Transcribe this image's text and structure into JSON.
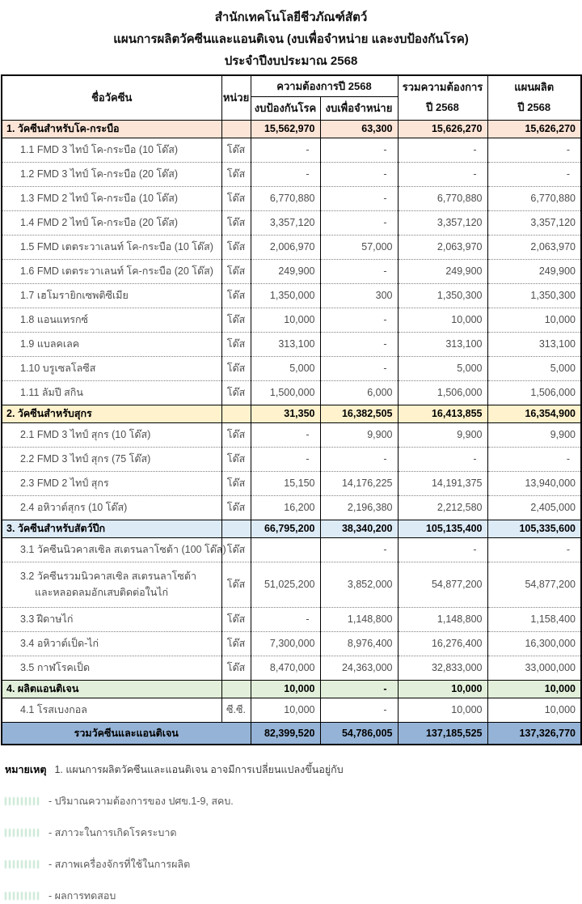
{
  "title": {
    "line1": "สำนักเทคโนโลยีชีวภัณฑ์สัตว์",
    "line2": "แผนการผลิตวัคซีนและแอนติเจน (งบเพื่อจำหน่าย และงบป้องกันโรค)",
    "line3": "ประจำปีงบประมาณ 2568"
  },
  "table": {
    "headers": {
      "name": "ชื่อวัคซีน",
      "unit": "หน่วย",
      "demand_group": "ความต้องการปี 2568",
      "demand_prevention": "งบป้องกันโรค",
      "demand_sale": "งบเพื่อจำหน่าย",
      "total_line1": "รวมความต้องการ",
      "total_line2": "ปี 2568",
      "plan_line1": "แผนผลิต",
      "plan_line2": "ปี 2568"
    },
    "rows": [
      {
        "type": "section",
        "style": "s1",
        "name": "1.  วัคซีนสำหรับโค-กระบือ",
        "unit": "",
        "values": [
          "15,562,970",
          "63,300",
          "15,626,270",
          "15,626,270"
        ]
      },
      {
        "type": "item",
        "name": "1.1 FMD 3 ไทป์ โค-กระบือ (10 โด๊ส)",
        "unit": "โด๊ส",
        "values": [
          "-",
          "-",
          "-",
          "-"
        ]
      },
      {
        "type": "item",
        "name": "1.2 FMD 3 ไทป์ โค-กระบือ (20 โด๊ส)",
        "unit": "โด๊ส",
        "values": [
          "-",
          "-",
          "-",
          "-"
        ]
      },
      {
        "type": "item",
        "name": "1.3 FMD 2 ไทป์ โค-กระบือ (10 โด๊ส)",
        "unit": "โด๊ส",
        "values": [
          "6,770,880",
          "-",
          "6,770,880",
          "6,770,880"
        ]
      },
      {
        "type": "item",
        "name": "1.4 FMD 2 ไทป์ โค-กระบือ (20 โด๊ส)",
        "unit": "โด๊ส",
        "values": [
          "3,357,120",
          "-",
          "3,357,120",
          "3,357,120"
        ]
      },
      {
        "type": "item",
        "name": "1.5 FMD เตตระวาเลนท์ โค-กระบือ (10 โด๊ส)",
        "unit": "โด๊ส",
        "values": [
          "2,006,970",
          "57,000",
          "2,063,970",
          "2,063,970"
        ]
      },
      {
        "type": "item",
        "name": "1.6 FMD เตตระวาเลนท์ โค-กระบือ (20 โด๊ส)",
        "unit": "โด๊ส",
        "values": [
          "249,900",
          "-",
          "249,900",
          "249,900"
        ]
      },
      {
        "type": "item",
        "name": "1.7 เฮโมรายิกเซพติซีเมีย",
        "unit": "โด๊ส",
        "values": [
          "1,350,000",
          "300",
          "1,350,300",
          "1,350,300"
        ]
      },
      {
        "type": "item",
        "name": "1.8 แอนแทรกซ์",
        "unit": "โด๊ส",
        "values": [
          "10,000",
          "-",
          "10,000",
          "10,000"
        ]
      },
      {
        "type": "item",
        "name": "1.9 แบลคเลค",
        "unit": "โด๊ส",
        "values": [
          "313,100",
          "-",
          "313,100",
          "313,100"
        ]
      },
      {
        "type": "item",
        "name": "1.10 บรูเซลโลซีส",
        "unit": "โด๊ส",
        "values": [
          "5,000",
          "-",
          "5,000",
          "5,000"
        ]
      },
      {
        "type": "item",
        "name": "1.11 ลัมปี สกิน",
        "unit": "โด๊ส",
        "values": [
          "1,500,000",
          "6,000",
          "1,506,000",
          "1,506,000"
        ]
      },
      {
        "type": "section",
        "style": "s2",
        "name": "2.  วัคซีนสำหรับสุกร",
        "unit": "",
        "values": [
          "31,350",
          "16,382,505",
          "16,413,855",
          "16,354,900"
        ]
      },
      {
        "type": "item",
        "name": "2.1  FMD 3 ไทป์ สุกร (10 โด๊ส)",
        "unit": "โด๊ส",
        "values": [
          "-",
          "9,900",
          "9,900",
          "9,900"
        ]
      },
      {
        "type": "item",
        "name": "2.2  FMD 3 ไทป์ สุกร (75 โด๊ส)",
        "unit": "โด๊ส",
        "values": [
          "-",
          "-",
          "-",
          "-"
        ]
      },
      {
        "type": "item",
        "name": "2.3  FMD 2 ไทป์ สุกร",
        "unit": "โด๊ส",
        "values": [
          "15,150",
          "14,176,225",
          "14,191,375",
          "13,940,000"
        ]
      },
      {
        "type": "item",
        "name": "2.4  อหิวาต์สุกร (10 โด๊ส)",
        "unit": "โด๊ส",
        "values": [
          "16,200",
          "2,196,380",
          "2,212,580",
          "2,405,000"
        ]
      },
      {
        "type": "section",
        "style": "s3",
        "name": "3.  วัคซีนสำหรับสัตว์ปีก",
        "unit": "",
        "values": [
          "66,795,200",
          "38,340,200",
          "105,135,400",
          "105,335,600"
        ]
      },
      {
        "type": "item",
        "name": "3.1 วัคซีนนิวคาสเซิล สเตรนลาโซต้า (100 โด๊ส)",
        "unit": "โด๊ส",
        "values": [
          "",
          "-",
          "-",
          "-"
        ]
      },
      {
        "type": "item2",
        "name": "3.2 วัคซีนรวมนิวคาสเซิล สเตรนลาโซต้า",
        "name2": "และหลอดลมอักเสบติดต่อในไก่",
        "unit": "โด๊ส",
        "values": [
          "51,025,200",
          "3,852,000",
          "54,877,200",
          "54,877,200"
        ]
      },
      {
        "type": "item",
        "name": "3.3 ฝีดาษไก่",
        "unit": "โด๊ส",
        "values": [
          "-",
          "1,148,800",
          "1,148,800",
          "1,158,400"
        ]
      },
      {
        "type": "item",
        "name": "3.4 อหิวาต์เป็ด-ไก่",
        "unit": "โด๊ส",
        "values": [
          "7,300,000",
          "8,976,400",
          "16,276,400",
          "16,300,000"
        ]
      },
      {
        "type": "item",
        "name": "3.5 กาฬโรคเป็ด",
        "unit": "โด๊ส",
        "values": [
          "8,470,000",
          "24,363,000",
          "32,833,000",
          "33,000,000"
        ]
      },
      {
        "type": "section",
        "style": "s4",
        "name": "4.  ผลิตแอนติเจน",
        "unit": "",
        "values": [
          "10,000",
          "-",
          "10,000",
          "10,000"
        ]
      },
      {
        "type": "item",
        "name": "4.1  โรสเบงกอล",
        "unit": "ซี.ซี.",
        "values": [
          "10,000",
          "-",
          "10,000",
          "10,000"
        ]
      },
      {
        "type": "total",
        "name": "รวมวัคซีนและแอนติเจน",
        "values": [
          "82,399,520",
          "54,786,005",
          "137,185,525",
          "137,326,770"
        ]
      }
    ]
  },
  "notes": {
    "heading": "หมายเหตุ",
    "line1": "1. แผนการผลิตวัคซีนและแอนติเจน อาจมีการเปลี่ยนแปลงขึ้นอยู่กับ",
    "bullets": [
      "- ปริมาณความต้องการของ ปศข.1-9, สคบ.",
      "- สภาวะในการเกิดโรคระบาด",
      "- สภาพเครื่องจักรที่ใช้ในการผลิต",
      "- ผลการทดสอบ"
    ]
  },
  "colors": {
    "section1_bg": "#fce4d6",
    "section2_bg": "#fff2cc",
    "section3_bg": "#ddebf7",
    "section4_bg": "#e2efda",
    "total_bg": "#95b3d7",
    "item_text": "#4d4d4d",
    "border": "#000000"
  }
}
